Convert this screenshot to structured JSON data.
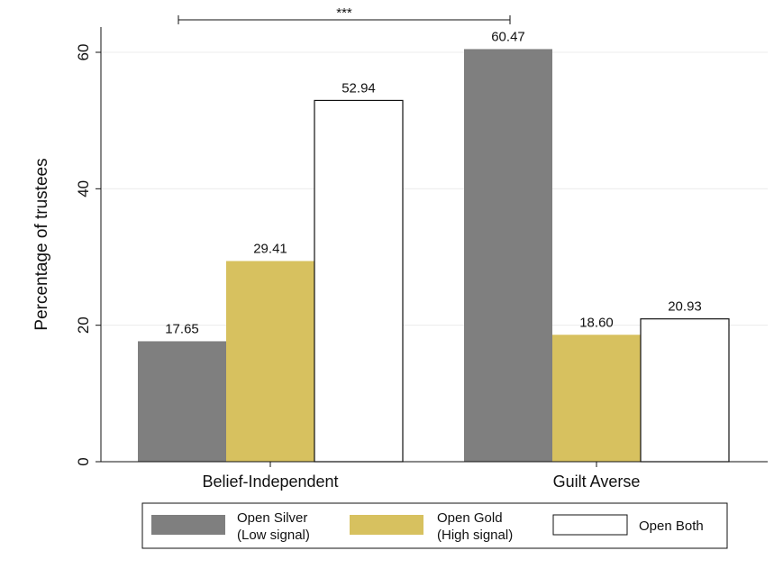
{
  "chart_data": {
    "type": "bar",
    "title": "",
    "xlabel": "",
    "ylabel": "Percentage of trustees",
    "ylim": [
      0,
      65
    ],
    "yticks": [
      0,
      20,
      40,
      60
    ],
    "grid": true,
    "legend_position": "bottom",
    "categories": [
      "Belief-Independent",
      "Guilt Averse"
    ],
    "series": [
      {
        "name": [
          "Open Silver",
          "(Low signal)"
        ],
        "values": [
          17.65,
          60.47
        ],
        "labels": [
          "17.65",
          "60.47"
        ],
        "color": "#7f7f7f"
      },
      {
        "name": [
          "Open Gold",
          "(High signal)"
        ],
        "values": [
          29.41,
          18.6
        ],
        "labels": [
          "29.41",
          "18.60"
        ],
        "color": "#d7c15f"
      },
      {
        "name": [
          "Open Both"
        ],
        "values": [
          52.94,
          20.93
        ],
        "labels": [
          "52.94",
          "20.93"
        ],
        "color": "#ffffff"
      }
    ],
    "annotations": [
      {
        "type": "significance-bracket",
        "text": "***",
        "from": {
          "category": 0,
          "series": 0
        },
        "to": {
          "category": 1,
          "series": 0
        }
      }
    ]
  }
}
